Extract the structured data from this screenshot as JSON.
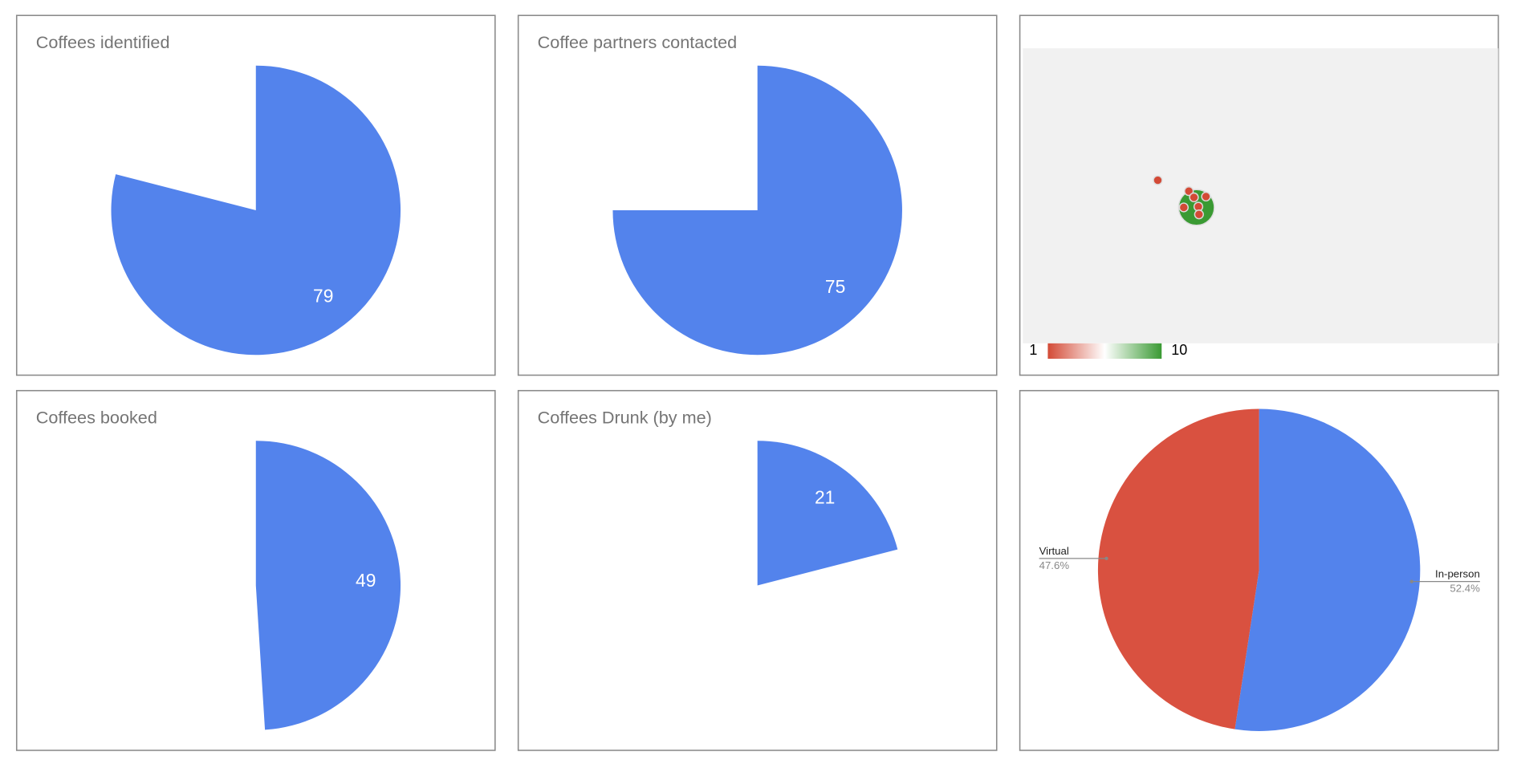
{
  "chart_data": [
    {
      "type": "gauge-pie",
      "title": "Coffees identified",
      "value": 79,
      "max": 100,
      "color": "#5383ec"
    },
    {
      "type": "gauge-pie",
      "title": "Coffee partners contacted",
      "value": 75,
      "max": 100,
      "color": "#5383ec"
    },
    {
      "type": "geo",
      "points": {
        "lon": [
          -8.7,
          -3.8,
          -3.0,
          -1.1,
          -4.6,
          -2.6,
          -2.3,
          -2.2
        ],
        "lat": [
          55.0,
          53.6,
          52.8,
          52.9,
          51.5,
          51.5,
          51.6,
          50.6
        ],
        "values": [
          1,
          1,
          1,
          1,
          1,
          10,
          1,
          1
        ]
      },
      "color_axis": {
        "min": 1,
        "max": 10,
        "colors": [
          "#d34a36",
          "#ffffff",
          "#3a9a33"
        ]
      }
    },
    {
      "type": "gauge-pie",
      "title": "Coffees booked",
      "value": 49,
      "max": 100,
      "color": "#5383ec"
    },
    {
      "type": "gauge-pie",
      "title": "Coffees Drunk (by me)",
      "value": 21,
      "max": 100,
      "color": "#5383ec"
    },
    {
      "type": "pie",
      "categories": [
        "In-person",
        "Virtual"
      ],
      "values": [
        52.4,
        47.6
      ],
      "value_labels": [
        "52.4%",
        "47.6%"
      ],
      "colors": [
        "#5383ec",
        "#d95140"
      ]
    }
  ]
}
